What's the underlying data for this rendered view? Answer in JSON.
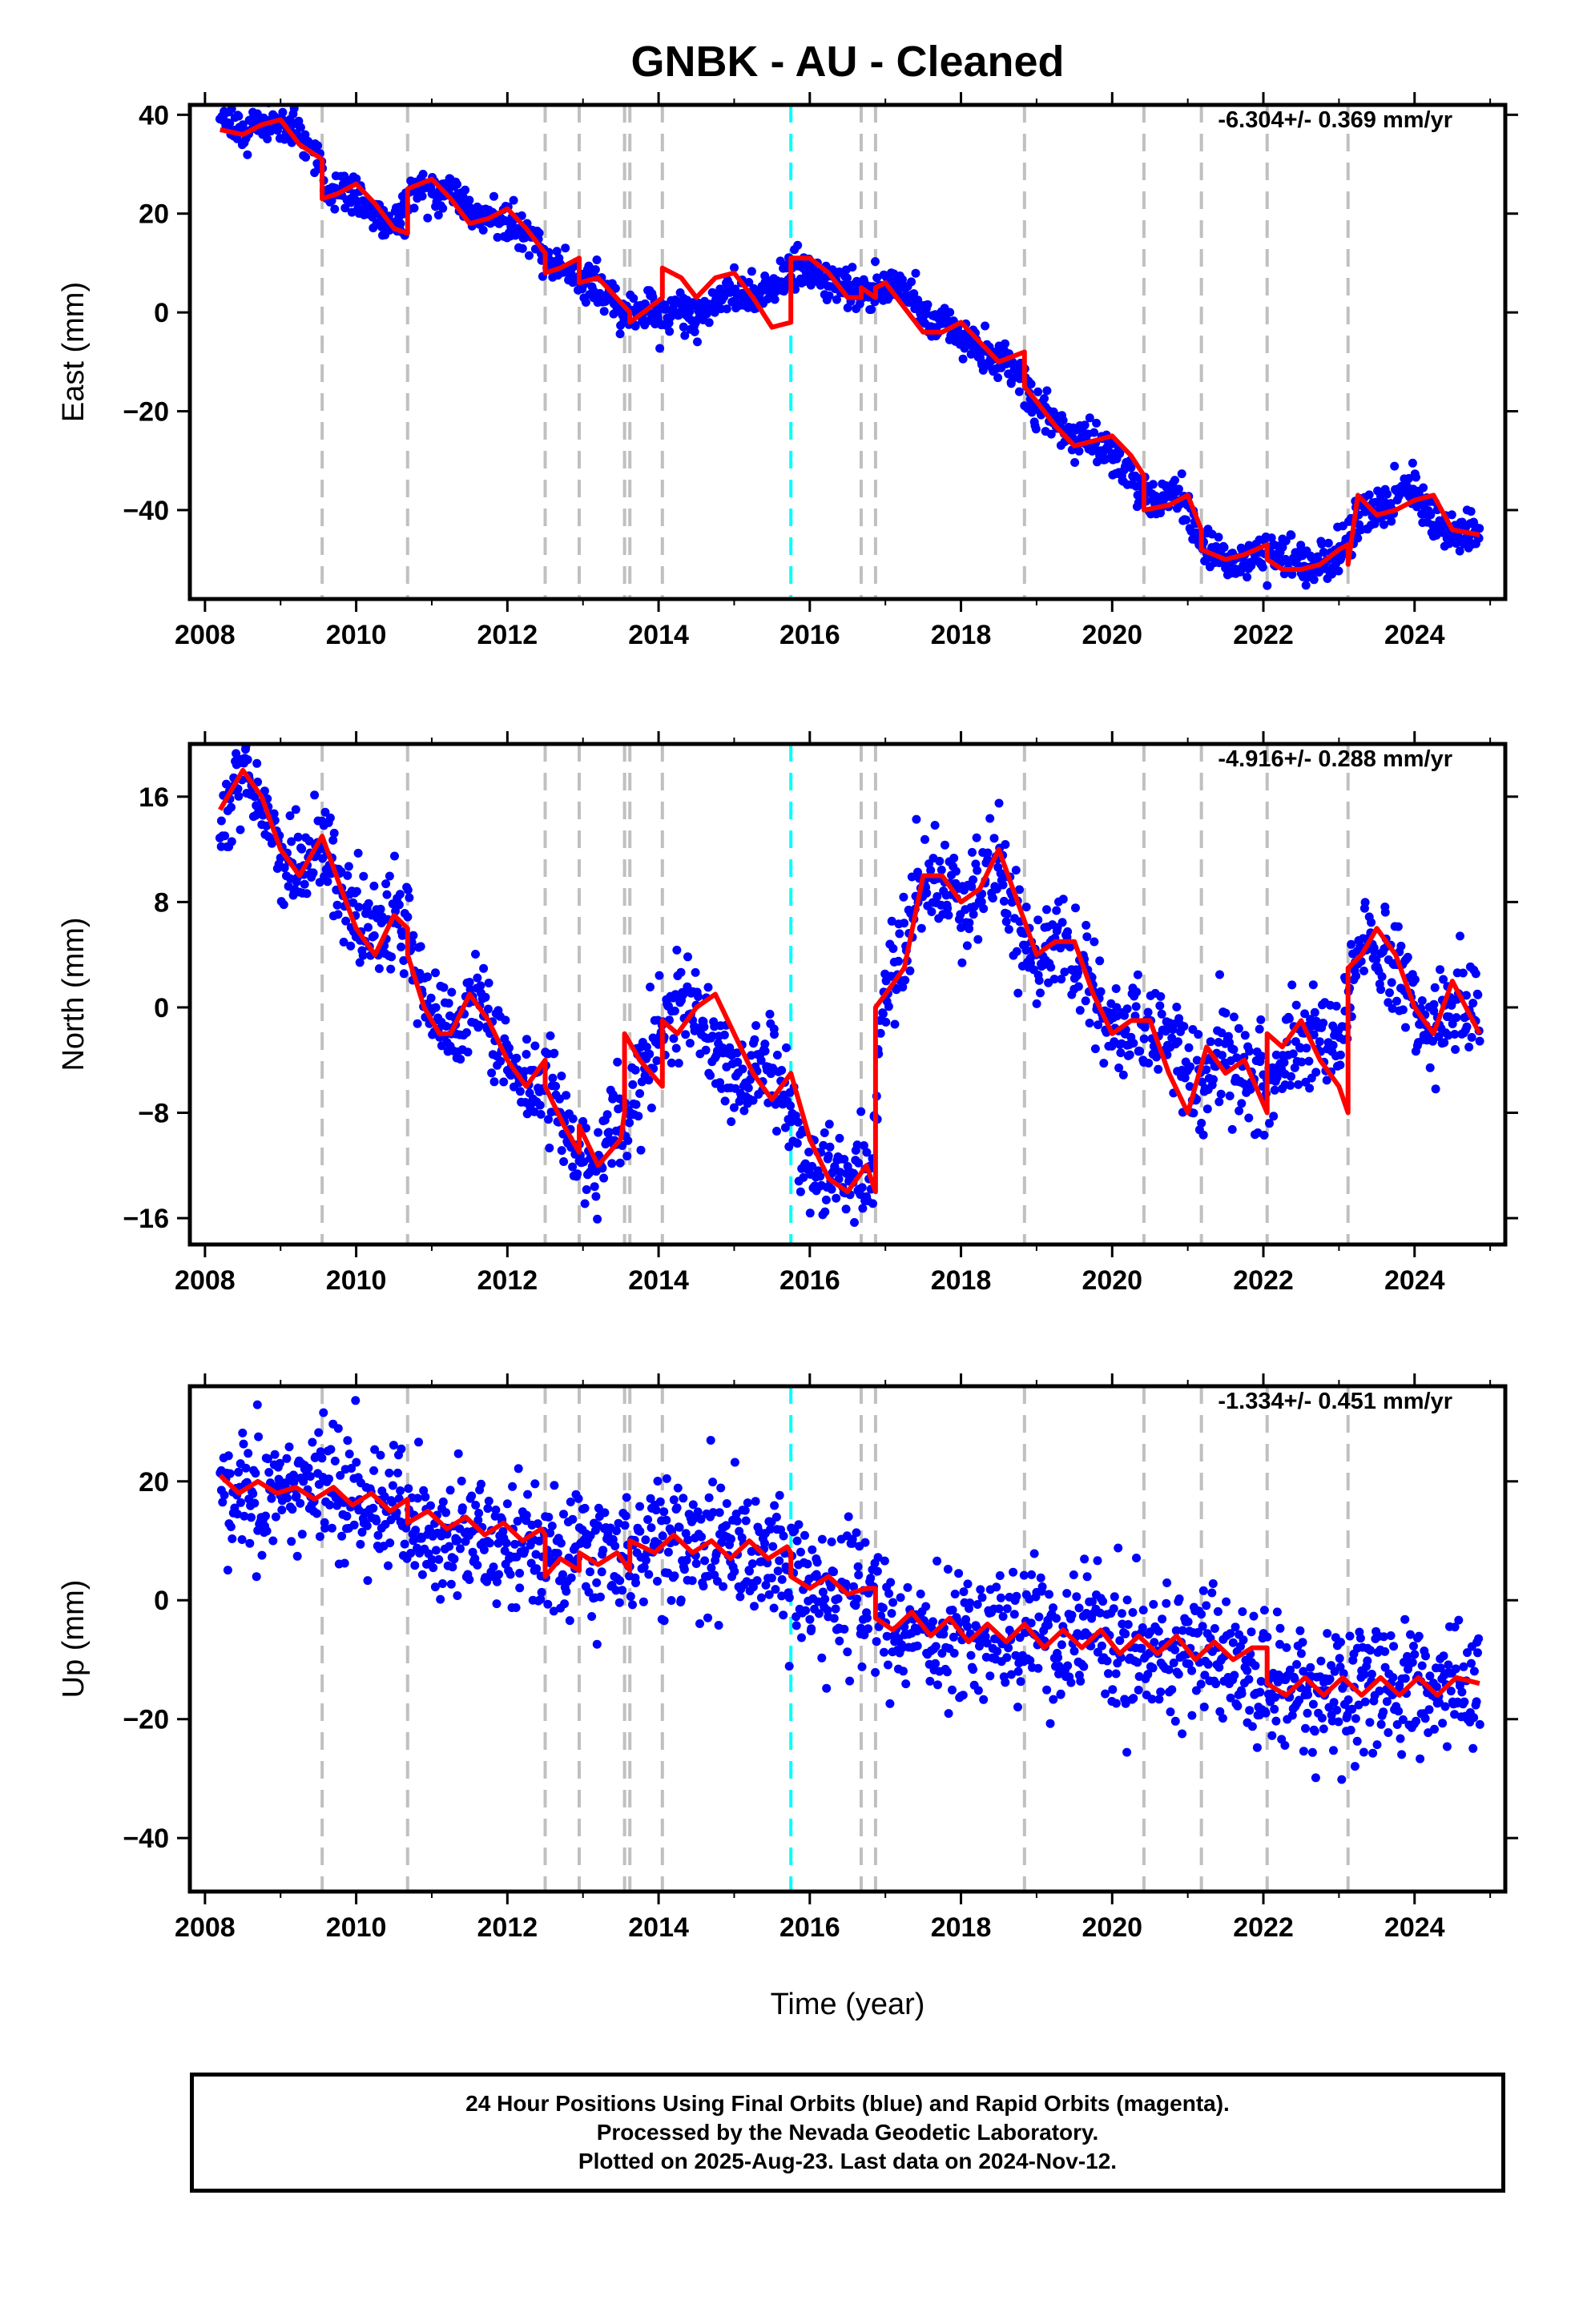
{
  "title": "GNBK  - AU - Cleaned",
  "footer": {
    "line1": "24 Hour Positions Using Final Orbits (blue) and Rapid Orbits (magenta).",
    "line2": "Processed by the Nevada Geodetic Laboratory.",
    "line3": "Plotted on 2025-Aug-23. Last data on 2024-Nov-12."
  },
  "colors": {
    "data_points": "#0000ff",
    "model_fit": "#ff0000",
    "event_line": "#c0c0c0",
    "highlight_event_line": "#00ffff"
  },
  "xlabel": "Time (year)",
  "chart_data": [
    {
      "type": "scatter",
      "panel": "East",
      "ylabel": "East (mm)",
      "rate_text": "-6.304+/- 0.369 mm/yr",
      "xlim": [
        2007.8,
        2025.2
      ],
      "ylim": [
        -58,
        42
      ],
      "xticks": [
        2008,
        2010,
        2012,
        2014,
        2016,
        2018,
        2020,
        2022,
        2024
      ],
      "xtick_labels": [
        "2008",
        "2010",
        "2012",
        "2014",
        "2016",
        "2018",
        "2020",
        "2022",
        "2024"
      ],
      "yticks": [
        -40,
        -20,
        0,
        20,
        40
      ],
      "ytick_labels": [
        "−40",
        "−20",
        "0",
        "20",
        "40"
      ],
      "series": [
        {
          "role": "data",
          "color": "blue",
          "spread": 2.0,
          "x": [
            2008.2,
            2008.5,
            2008.8,
            2009.0,
            2009.3,
            2009.5,
            2009.6,
            2009.9,
            2010.2,
            2010.4,
            2010.6,
            2010.7,
            2011.0,
            2011.3,
            2011.6,
            2011.9,
            2012.1,
            2012.4,
            2012.5,
            2012.7,
            2013.0,
            2013.2,
            2013.4,
            2013.6,
            2013.9,
            2014.1,
            2014.3,
            2014.5,
            2014.8,
            2015.0,
            2015.3,
            2015.5,
            2015.7,
            2016.0,
            2016.2,
            2016.5,
            2016.7,
            2016.9,
            2017.1,
            2017.4,
            2017.6,
            2017.9,
            2018.1,
            2018.4,
            2018.7,
            2018.8,
            2019.0,
            2019.2,
            2019.5,
            2019.8,
            2020.1,
            2020.4,
            2020.6,
            2020.9,
            2021.1,
            2021.2,
            2021.4,
            2021.6,
            2021.9,
            2022.1,
            2022.3,
            2022.6,
            2022.9,
            2023.1,
            2023.2,
            2023.4,
            2023.6,
            2023.9,
            2024.1,
            2024.3,
            2024.6,
            2024.86
          ],
          "y": [
            38,
            37,
            38,
            39,
            35,
            31,
            25,
            25,
            20,
            18,
            19,
            24,
            25,
            24,
            20,
            20,
            17,
            14,
            11,
            9,
            6,
            5,
            2,
            -1,
            0,
            -1,
            0,
            -1,
            3,
            4,
            3,
            5,
            8,
            9,
            7,
            4,
            4,
            5,
            6,
            3,
            -2,
            -4,
            -6,
            -10,
            -12,
            -13,
            -20,
            -21,
            -25,
            -27,
            -30,
            -37,
            -38,
            -38,
            -42,
            -47,
            -50,
            -51,
            -49,
            -49,
            -49,
            -52,
            -50,
            -48,
            -42,
            -40,
            -39,
            -36,
            -38,
            -44,
            -45,
            -44
          ]
        },
        {
          "role": "model",
          "color": "red",
          "x": [
            2008.2,
            2008.5,
            2008.75,
            2009.0,
            2009.25,
            2009.55,
            2009.55,
            2009.75,
            2010.0,
            2010.25,
            2010.5,
            2010.68,
            2010.68,
            2011.0,
            2011.25,
            2011.5,
            2011.75,
            2012.0,
            2012.25,
            2012.5,
            2012.5,
            2012.7,
            2012.95,
            2012.95,
            2013.2,
            2013.5,
            2013.62,
            2013.62,
            2013.8,
            2014.05,
            2014.05,
            2014.3,
            2014.5,
            2014.75,
            2015.0,
            2015.25,
            2015.5,
            2015.75,
            2015.75,
            2016.0,
            2016.25,
            2016.5,
            2016.68,
            2016.68,
            2016.87,
            2016.87,
            2017.0,
            2017.25,
            2017.5,
            2017.75,
            2018.0,
            2018.25,
            2018.5,
            2018.84,
            2018.84,
            2019.0,
            2019.25,
            2019.5,
            2019.75,
            2020.0,
            2020.25,
            2020.42,
            2020.42,
            2020.75,
            2021.0,
            2021.18,
            2021.18,
            2021.5,
            2021.75,
            2022.05,
            2022.05,
            2022.25,
            2022.5,
            2022.75,
            2023.0,
            2023.12,
            2023.12,
            2023.25,
            2023.5,
            2023.75,
            2024.0,
            2024.25,
            2024.5,
            2024.86
          ],
          "y": [
            37,
            36,
            38,
            39,
            34,
            31,
            23,
            24,
            26,
            22,
            17,
            16,
            25,
            27,
            23,
            18,
            19,
            21,
            17,
            12,
            8,
            9,
            11,
            6,
            7,
            2,
            0,
            -2,
            0,
            3,
            9,
            7,
            3,
            7,
            8,
            3,
            -3,
            -2,
            11,
            11,
            8,
            3,
            3,
            5,
            3,
            5,
            6,
            1,
            -4,
            -4,
            -2,
            -6,
            -10,
            -8,
            -15,
            -18,
            -23,
            -27,
            -26,
            -25,
            -29,
            -33,
            -40,
            -39,
            -37,
            -44,
            -48,
            -50,
            -49,
            -47,
            -50,
            -52,
            -52,
            -51,
            -48,
            -47,
            -51,
            -37,
            -41,
            -40,
            -38,
            -37,
            -44,
            -45
          ]
        }
      ]
    },
    {
      "type": "scatter",
      "panel": "North",
      "ylabel": "North (mm)",
      "rate_text": "-4.916+/- 0.288 mm/yr",
      "xlim": [
        2007.8,
        2025.2
      ],
      "ylim": [
        -18,
        20
      ],
      "xticks": [
        2008,
        2010,
        2012,
        2014,
        2016,
        2018,
        2020,
        2022,
        2024
      ],
      "xtick_labels": [
        "2008",
        "2010",
        "2012",
        "2014",
        "2016",
        "2018",
        "2020",
        "2022",
        "2024"
      ],
      "yticks": [
        -16,
        -8,
        0,
        8,
        16
      ],
      "ytick_labels": [
        "−16",
        "−8",
        "0",
        "8",
        "16"
      ],
      "series": [
        {
          "role": "data",
          "color": "blue",
          "spread": 1.8,
          "x": [
            2008.2,
            2008.5,
            2008.7,
            2009.0,
            2009.3,
            2009.5,
            2009.8,
            2010.1,
            2010.3,
            2010.6,
            2010.8,
            2011.0,
            2011.3,
            2011.6,
            2011.9,
            2012.1,
            2012.4,
            2012.6,
            2012.9,
            2013.1,
            2013.3,
            2013.6,
            2013.8,
            2014.0,
            2014.3,
            2014.5,
            2014.8,
            2015.0,
            2015.3,
            2015.5,
            2015.8,
            2016.0,
            2016.3,
            2016.5,
            2016.8,
            2016.95,
            2017.2,
            2017.5,
            2017.7,
            2018.0,
            2018.2,
            2018.5,
            2018.7,
            2019.0,
            2019.3,
            2019.6,
            2019.9,
            2020.2,
            2020.5,
            2020.8,
            2021.1,
            2021.3,
            2021.6,
            2021.9,
            2022.1,
            2022.4,
            2022.7,
            2023.0,
            2023.2,
            2023.5,
            2023.8,
            2024.1,
            2024.3,
            2024.6,
            2024.86
          ],
          "y": [
            14,
            18,
            16,
            12,
            10,
            13,
            9,
            6,
            6,
            7,
            3,
            0,
            -2,
            1,
            -3,
            -5,
            -6,
            -6,
            -11,
            -12,
            -10,
            -8,
            -5,
            -2,
            0,
            1,
            -4,
            -6,
            -5,
            -4,
            -9,
            -13,
            -13,
            -12,
            -14,
            0,
            3,
            10,
            10,
            8,
            9,
            11,
            7,
            3,
            5,
            3,
            -1,
            -2,
            -1,
            -2,
            -7,
            -4,
            -4,
            -5,
            -6,
            -3,
            -2,
            -3,
            3,
            5,
            3,
            -1,
            -2,
            1,
            -1
          ]
        },
        {
          "role": "model",
          "color": "red",
          "x": [
            2008.2,
            2008.5,
            2008.75,
            2009.0,
            2009.25,
            2009.55,
            2009.8,
            2010.0,
            2010.25,
            2010.5,
            2010.68,
            2010.68,
            2010.9,
            2011.1,
            2011.25,
            2011.5,
            2011.75,
            2012.0,
            2012.25,
            2012.5,
            2012.5,
            2012.75,
            2012.95,
            2012.95,
            2013.2,
            2013.5,
            2013.55,
            2013.55,
            2013.75,
            2014.05,
            2014.05,
            2014.25,
            2014.5,
            2014.75,
            2015.0,
            2015.25,
            2015.5,
            2015.75,
            2016.0,
            2016.25,
            2016.5,
            2016.75,
            2016.87,
            2016.87,
            2017.0,
            2017.25,
            2017.5,
            2017.75,
            2018.0,
            2018.25,
            2018.5,
            2018.75,
            2019.0,
            2019.25,
            2019.5,
            2019.75,
            2020.0,
            2020.25,
            2020.5,
            2020.75,
            2021.0,
            2021.25,
            2021.5,
            2021.75,
            2022.05,
            2022.05,
            2022.25,
            2022.5,
            2022.75,
            2023.0,
            2023.12,
            2023.12,
            2023.3,
            2023.5,
            2023.75,
            2024.0,
            2024.25,
            2024.5,
            2024.86
          ],
          "y": [
            15,
            18,
            16,
            12,
            10,
            13,
            9,
            6,
            4,
            7,
            6,
            4,
            0,
            -2,
            -2,
            1,
            -1,
            -4,
            -6,
            -4,
            -6,
            -9,
            -11,
            -9,
            -12,
            -10,
            -8,
            -2,
            -4,
            -6,
            -1,
            -2,
            0,
            1,
            -2,
            -5,
            -7,
            -5,
            -10,
            -13,
            -14,
            -12,
            -14,
            0,
            1,
            3,
            10,
            10,
            8,
            9,
            12,
            8,
            4,
            5,
            5,
            1,
            -2,
            -1,
            -1,
            -5,
            -8,
            -3,
            -5,
            -4,
            -8,
            -2,
            -3,
            -1,
            -4,
            -6,
            -8,
            3,
            4,
            6,
            4,
            0,
            -2,
            2,
            -2
          ]
        }
      ]
    },
    {
      "type": "scatter",
      "panel": "Up",
      "ylabel": "Up (mm)",
      "rate_text": "-1.334+/- 0.451 mm/yr",
      "xlim": [
        2007.8,
        2025.2
      ],
      "ylim": [
        -49,
        36
      ],
      "xticks": [
        2008,
        2010,
        2012,
        2014,
        2016,
        2018,
        2020,
        2022,
        2024
      ],
      "xtick_labels": [
        "2008",
        "2010",
        "2012",
        "2014",
        "2016",
        "2018",
        "2020",
        "2022",
        "2024"
      ],
      "yticks": [
        -40,
        -20,
        0,
        20
      ],
      "ytick_labels": [
        "−40",
        "−20",
        "0",
        "20"
      ],
      "series": [
        {
          "role": "data",
          "color": "blue",
          "spread": 5.5,
          "x": [
            2008.2,
            2008.6,
            2009.0,
            2009.5,
            2010.0,
            2010.5,
            2011.0,
            2011.5,
            2012.0,
            2012.5,
            2013.0,
            2013.5,
            2014.0,
            2014.5,
            2015.0,
            2015.5,
            2016.0,
            2016.5,
            2016.87,
            2017.0,
            2017.5,
            2018.0,
            2018.5,
            2019.0,
            2019.5,
            2020.0,
            2020.5,
            2021.0,
            2021.5,
            2022.0,
            2022.5,
            2023.0,
            2023.5,
            2024.0,
            2024.5,
            2024.86
          ],
          "y": [
            19,
            17,
            19,
            19,
            17,
            16,
            12,
            11,
            11,
            7,
            8,
            8,
            9,
            9,
            9,
            8,
            3,
            2,
            1,
            -5,
            -6,
            -6,
            -7,
            -7,
            -7,
            -7,
            -8,
            -9,
            -10,
            -14,
            -15,
            -15,
            -15,
            -15,
            -15,
            -13
          ]
        },
        {
          "role": "model",
          "color": "red",
          "x": [
            2008.2,
            2008.45,
            2008.7,
            2008.95,
            2009.2,
            2009.45,
            2009.7,
            2009.95,
            2010.2,
            2010.45,
            2010.68,
            2010.68,
            2010.95,
            2011.2,
            2011.45,
            2011.7,
            2011.95,
            2012.2,
            2012.45,
            2012.5,
            2012.5,
            2012.7,
            2012.95,
            2012.95,
            2013.2,
            2013.45,
            2013.62,
            2013.62,
            2013.95,
            2014.2,
            2014.45,
            2014.7,
            2014.95,
            2015.2,
            2015.45,
            2015.7,
            2015.75,
            2015.75,
            2016.0,
            2016.25,
            2016.5,
            2016.75,
            2016.87,
            2016.87,
            2017.1,
            2017.35,
            2017.6,
            2017.85,
            2018.1,
            2018.35,
            2018.6,
            2018.84,
            2019.1,
            2019.35,
            2019.6,
            2019.85,
            2020.1,
            2020.35,
            2020.6,
            2020.85,
            2021.1,
            2021.35,
            2021.6,
            2021.85,
            2022.05,
            2022.05,
            2022.3,
            2022.55,
            2022.8,
            2023.05,
            2023.3,
            2023.55,
            2023.8,
            2024.05,
            2024.3,
            2024.55,
            2024.86
          ],
          "y": [
            21,
            18,
            20,
            18,
            19,
            17,
            19,
            16,
            18,
            15,
            17,
            13,
            15,
            12,
            14,
            11,
            13,
            10,
            12,
            11,
            4,
            7,
            5,
            8,
            6,
            8,
            5,
            10,
            8,
            11,
            8,
            10,
            7,
            10,
            7,
            9,
            8,
            4,
            2,
            4,
            1,
            2,
            2,
            -3,
            -5,
            -2,
            -6,
            -3,
            -7,
            -4,
            -7,
            -4,
            -8,
            -5,
            -8,
            -5,
            -9,
            -6,
            -9,
            -6,
            -10,
            -7,
            -10,
            -8,
            -8,
            -14,
            -16,
            -13,
            -16,
            -13,
            -16,
            -13,
            -16,
            -13,
            -16,
            -13,
            -14
          ]
        }
      ]
    }
  ],
  "event_years": [
    2009.55,
    2010.68,
    2012.5,
    2012.95,
    2013.55,
    2013.62,
    2014.05,
    2016.68,
    2016.87,
    2018.84,
    2020.42,
    2021.18,
    2022.05,
    2023.12
  ],
  "highlight_event_year": 2015.75
}
